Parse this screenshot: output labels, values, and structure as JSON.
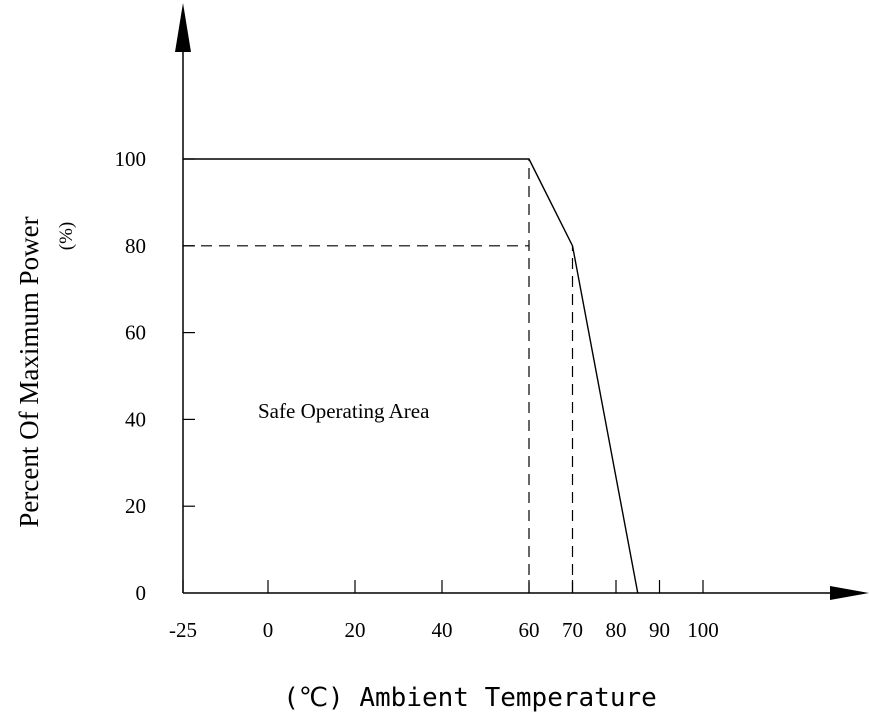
{
  "chart_data": {
    "type": "line",
    "title": "",
    "ylabel": "Percent Of Maximum Power",
    "ylabel_unit": "(%)",
    "xlabel": "(℃) Ambient Temperature",
    "annotation": "Safe Operating Area",
    "x_ticks": [
      "-25",
      "0",
      "20",
      "40",
      "60",
      "70",
      "80",
      "90",
      "100"
    ],
    "x_tick_values": [
      -25,
      0,
      20,
      40,
      60,
      70,
      80,
      90,
      100
    ],
    "y_ticks": [
      "0",
      "20",
      "40",
      "60",
      "80",
      "100"
    ],
    "y_tick_values": [
      0,
      20,
      40,
      60,
      80,
      100
    ],
    "series": [
      {
        "x": [
          -25,
          60,
          70,
          85
        ],
        "y": [
          100,
          100,
          80,
          0
        ]
      }
    ],
    "reference_lines": [
      {
        "style": "dashed",
        "x": [
          -25,
          60
        ],
        "y": [
          80,
          80
        ]
      },
      {
        "style": "dashed",
        "x": [
          60,
          60
        ],
        "y": [
          0,
          100
        ]
      },
      {
        "style": "dashed",
        "x": [
          70,
          70
        ],
        "y": [
          0,
          80
        ]
      }
    ],
    "grid": false,
    "axis_arrows": true,
    "color": "#000000"
  }
}
